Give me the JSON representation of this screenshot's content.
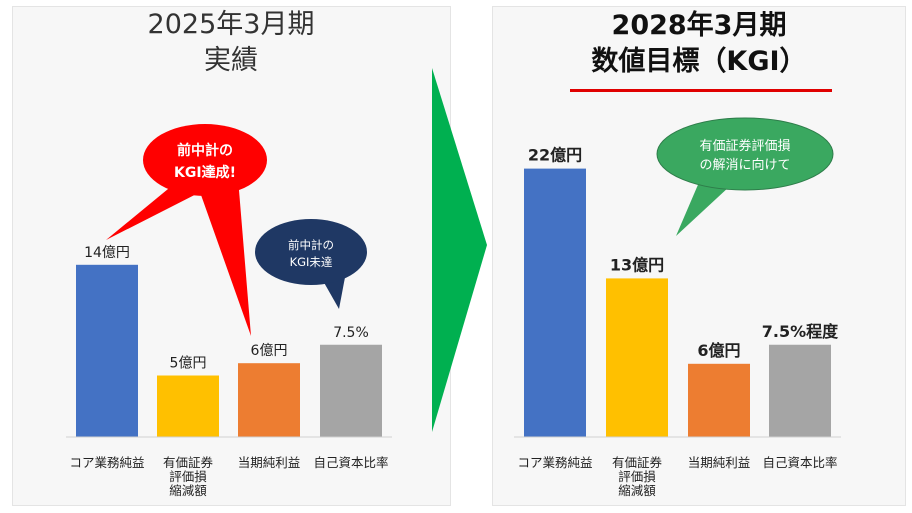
{
  "left_title": [
    "2025年3月期",
    "実績"
  ],
  "right_title": [
    "2028年3月期",
    "数値目標（KGI）"
  ],
  "colors": {
    "blue": "#4472c4",
    "yellow": "#ffc000",
    "orange": "#ed7d31",
    "gray": "#a5a5a5",
    "arrow_green": "#00b050",
    "bubble_red": "#ff0000",
    "bubble_navy": "#1f3864",
    "bubble_green": "#3aa860"
  },
  "chart_data": [
    {
      "type": "bar",
      "title": "2025年3月期 実績",
      "categories": [
        "コア業務純益",
        "有価証券評価損縮減額",
        "当期純利益",
        "自己資本比率"
      ],
      "category_lines": [
        [
          "コア業務純益"
        ],
        [
          "有価証券",
          "評価損",
          "縮減額"
        ],
        [
          "当期純利益"
        ],
        [
          "自己資本比率"
        ]
      ],
      "values": [
        14,
        5,
        6,
        7.5
      ],
      "data_labels": [
        "14億円",
        "5億円",
        "6億円",
        "7.5%"
      ],
      "units": [
        "億円",
        "億円",
        "億円",
        "%"
      ],
      "bar_colors": [
        "#4472c4",
        "#ffc000",
        "#ed7d31",
        "#a5a5a5"
      ]
    },
    {
      "type": "bar",
      "title": "2028年3月期 数値目標（KGI）",
      "categories": [
        "コア業務純益",
        "有価証券評価損縮減額",
        "当期純利益",
        "自己資本比率"
      ],
      "category_lines": [
        [
          "コア業務純益"
        ],
        [
          "有価証券",
          "評価損",
          "縮減額"
        ],
        [
          "当期純利益"
        ],
        [
          "自己資本比率"
        ]
      ],
      "values": [
        22,
        13,
        6,
        7.5
      ],
      "data_labels": [
        "22億円",
        "13億円",
        "6億円",
        "7.5%程度"
      ],
      "units": [
        "億円",
        "億円",
        "億円",
        "%"
      ],
      "bar_colors": [
        "#4472c4",
        "#ffc000",
        "#ed7d31",
        "#a5a5a5"
      ]
    }
  ],
  "callouts": {
    "red": [
      "前中計の",
      "KGI達成!"
    ],
    "navy": [
      "前中計の",
      "KGI未達"
    ],
    "green": [
      "有価証券評価損",
      "の解消に向けて"
    ]
  }
}
